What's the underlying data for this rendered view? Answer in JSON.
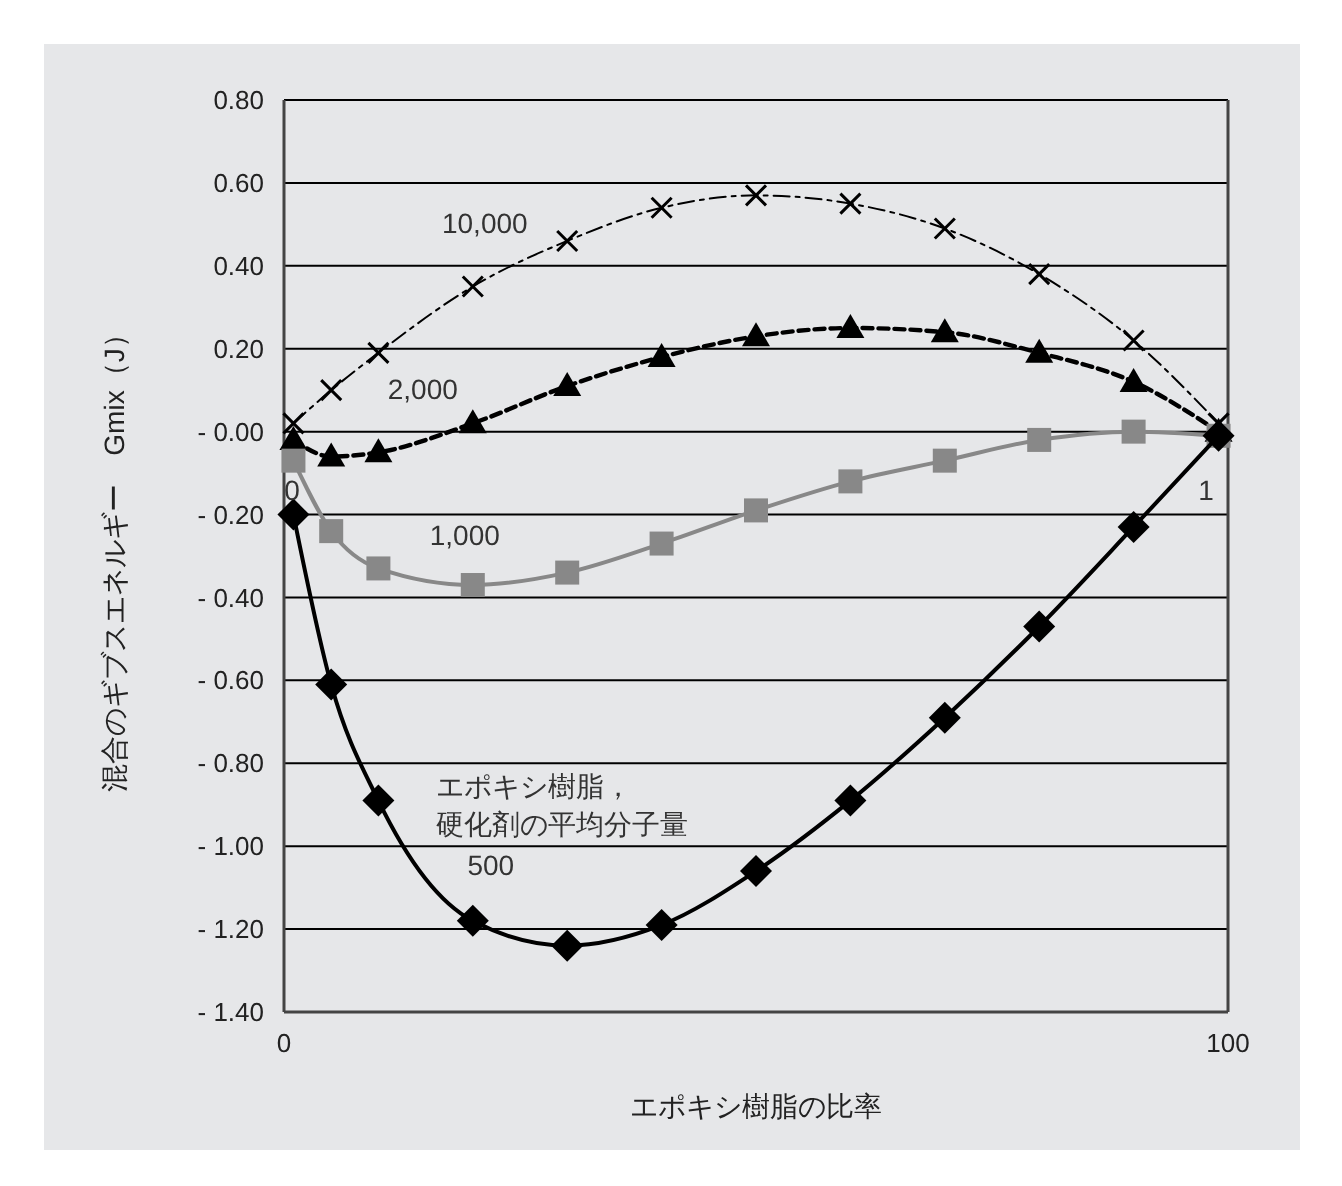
{
  "chart_data": {
    "type": "line",
    "xlabel": "エポキシ樹脂の比率",
    "ylabel": "混合のギブスエネルギー　Gmix（J）",
    "x": [
      1,
      5,
      10,
      20,
      30,
      40,
      50,
      60,
      70,
      80,
      90,
      99
    ],
    "xlim": [
      0,
      100
    ],
    "xticks": [
      0,
      100
    ],
    "ylim": [
      -1.4,
      0.8
    ],
    "yticks": [
      {
        "value": 0.8,
        "label": "0.80"
      },
      {
        "value": 0.6,
        "label": "0.60"
      },
      {
        "value": 0.4,
        "label": "0.40"
      },
      {
        "value": 0.2,
        "label": "0.20"
      },
      {
        "value": 0,
        "label": "- 0.00"
      },
      {
        "value": -0.2,
        "label": "- 0.20"
      },
      {
        "value": -0.4,
        "label": "- 0.40"
      },
      {
        "value": -0.6,
        "label": "- 0.60"
      },
      {
        "value": -0.8,
        "label": "- 0.80"
      },
      {
        "value": -1,
        "label": "- 1.00"
      },
      {
        "value": -1.2,
        "label": "- 1.20"
      },
      {
        "value": -1.4,
        "label": "- 1.40"
      }
    ],
    "grid": "y",
    "series": [
      {
        "name": "10,000",
        "color": "#000000",
        "marker": "cross",
        "line_style": "dashdot",
        "values": [
          0.02,
          0.1,
          0.19,
          0.35,
          0.46,
          0.54,
          0.57,
          0.55,
          0.49,
          0.38,
          0.22,
          0.02
        ]
      },
      {
        "name": "2,000",
        "color": "#000000",
        "marker": "triangle",
        "line_style": "dashed",
        "values": [
          -0.02,
          -0.06,
          -0.05,
          0.02,
          0.11,
          0.18,
          0.23,
          0.25,
          0.24,
          0.19,
          0.12,
          0.0
        ]
      },
      {
        "name": "1,000",
        "color": "#888888",
        "marker": "square",
        "line_style": "solid",
        "values": [
          -0.07,
          -0.24,
          -0.33,
          -0.37,
          -0.34,
          -0.27,
          -0.19,
          -0.12,
          -0.07,
          -0.02,
          0.0,
          -0.01
        ]
      },
      {
        "name": "500",
        "color": "#000000",
        "marker": "diamond",
        "line_style": "solid",
        "values": [
          -0.2,
          -0.61,
          -0.89,
          -1.18,
          -1.24,
          -1.19,
          -1.06,
          -0.89,
          -0.69,
          -0.47,
          -0.23,
          -0.01
        ]
      }
    ],
    "annotations": [
      "エポキシ樹脂，硬化剤の平均分子量",
      "0",
      "1"
    ]
  }
}
